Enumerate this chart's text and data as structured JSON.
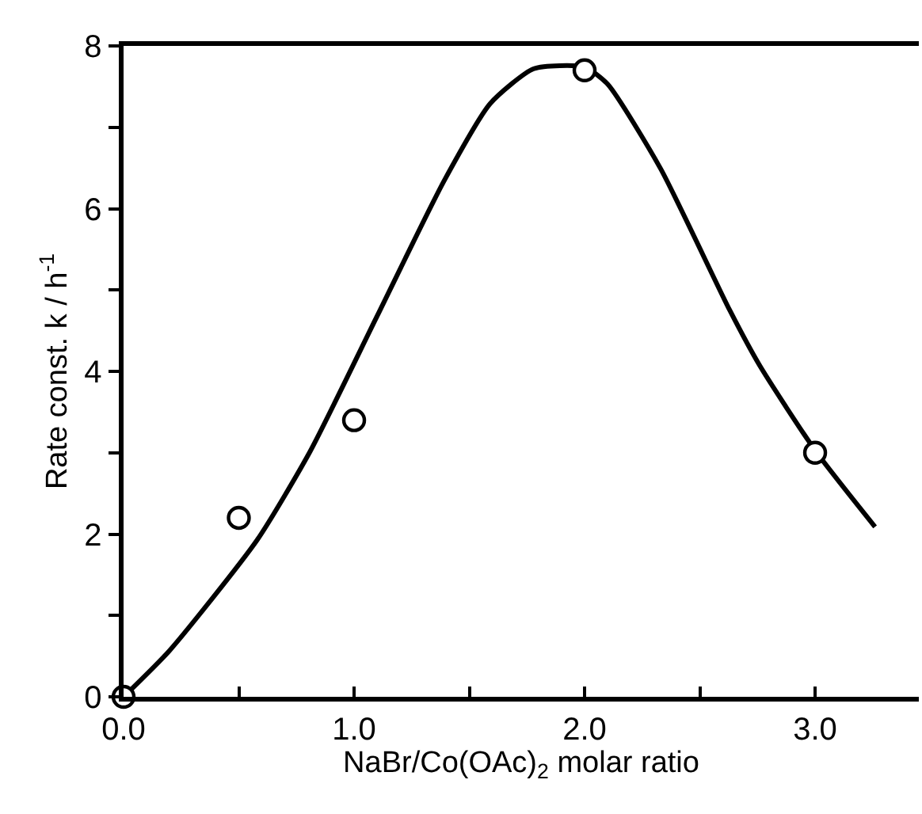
{
  "chart_data": {
    "type": "scatter",
    "xlabel": "NaBr/Co(OAc)$_{2}$ molar ratio",
    "ylabel": "Rate const. k / h$^{-1}$",
    "xlim": [
      0,
      3.45
    ],
    "ylim": [
      0,
      8
    ],
    "xticks": [
      {
        "value": 0,
        "label": "0.0"
      },
      {
        "value": 0.5,
        "label": null
      },
      {
        "value": 1,
        "label": "1.0"
      },
      {
        "value": 1.5,
        "label": null
      },
      {
        "value": 2,
        "label": "2.0"
      },
      {
        "value": 2.5,
        "label": null
      },
      {
        "value": 3,
        "label": "3.0"
      }
    ],
    "yticks": [
      0,
      {
        "value": 1,
        "label": null
      },
      2,
      {
        "value": 3,
        "label": null
      },
      4,
      {
        "value": 5,
        "label": null
      },
      6,
      {
        "value": 7,
        "label": null
      },
      8
    ],
    "series": [
      {
        "type": "line",
        "color": "#000000",
        "marker": "none",
        "line_style": "solid",
        "x": [
          0,
          0.2,
          0.58,
          0.81,
          1.1,
          1.39,
          1.59,
          1.78,
          2.0,
          2.1,
          2.33,
          2.63,
          2.76,
          3.0,
          3.26
        ],
        "values": [
          0,
          0.57,
          1.93,
          3.02,
          4.68,
          6.34,
          7.29,
          7.72,
          7.74,
          7.53,
          6.49,
          4.75,
          4.07,
          3.03,
          2.09
        ]
      },
      {
        "color": "#000000",
        "marker": "circle",
        "x": [
          0,
          0.5,
          1.0,
          2.0,
          3.0
        ],
        "values": [
          0,
          2.2,
          3.4,
          7.7,
          3.0
        ]
      }
    ]
  }
}
